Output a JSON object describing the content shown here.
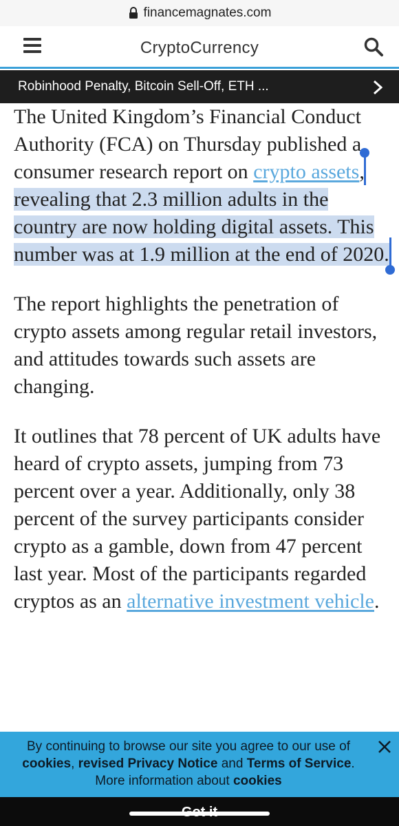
{
  "browser": {
    "url": "financemagnates.com"
  },
  "header": {
    "title": "CryptoCurrency"
  },
  "ticker": {
    "text": "Robinhood Penalty, Bitcoin Sell-Off, ETH ..."
  },
  "article": {
    "p1_pre": "The United Kingdom’s Financial Conduct Authority (FCA) on Thursday published a consumer research report on ",
    "p1_link": "crypto assets",
    "p1_comma": ",",
    "p1_selected": " revealing that 2.3 million adults in the country are now holding digital assets. This number was at 1.9 million at the end of 2020.",
    "p2": "The report highlights the penetration of crypto assets among regular retail investors, and attitudes towards such assets are changing.",
    "p3_text": "It outlines that 78 percent of UK adults have heard of crypto assets, jumping from 73 percent over a year. Additionally, only 38 percent of the survey participants consider crypto as a gamble, down from 47 percent last year. Most of the participants regarded cryptos as an ",
    "p3_link": "alternative investment vehicle",
    "p3_end": "."
  },
  "cookie": {
    "line1": "By continuing to browse our site you agree to our use of",
    "cookies_bold": "cookies",
    "sep1": ", ",
    "privacy_bold": "revised Privacy Notice",
    "and": " and ",
    "terms_bold": "Terms of Service",
    "period": ".",
    "more_text": "More information about ",
    "more_link": "cookies",
    "button": "Got it"
  },
  "colors": {
    "accent": "#3aa0d8",
    "link": "#5aa8dd",
    "selection": "#ccdbef",
    "handle": "#2f6bd4",
    "banner": "#33a6dc"
  },
  "icons": {
    "lock": "lock-icon",
    "menu": "hamburger-menu-icon",
    "search": "search-icon",
    "ticker_arrow": "chevron-right-icon",
    "close": "close-icon"
  }
}
